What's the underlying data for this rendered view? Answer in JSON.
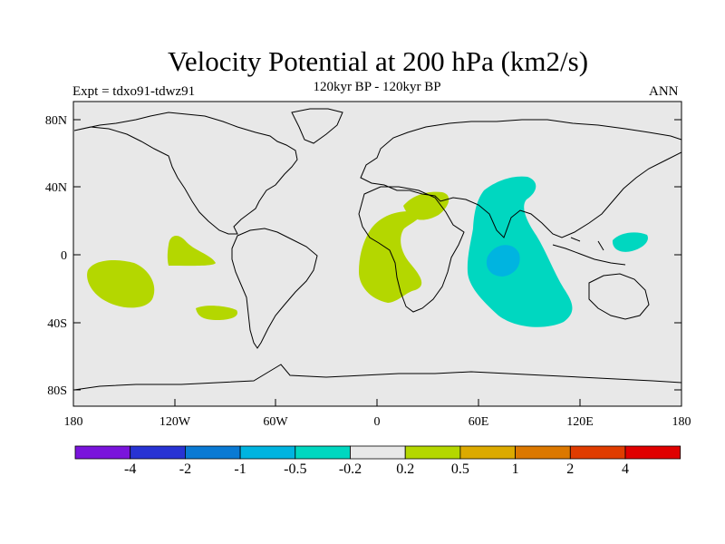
{
  "title": "Velocity Potential at 200 hPa (km2/s)",
  "subtitle": "120kyr BP - 120kyr BP",
  "experiment": "Expt = tdxo91-tdwz91",
  "season": "ANN",
  "map": {
    "projection": "cylindrical equidistant",
    "lon_range": [
      -180,
      180
    ],
    "lat_range": [
      -90,
      90
    ],
    "background_color": "#e8e8e8",
    "lat_ticks": [
      "80N",
      "40N",
      "0",
      "40S",
      "80S"
    ],
    "lon_ticks": [
      "180",
      "120W",
      "60W",
      "0",
      "60E",
      "120E",
      "180"
    ],
    "anomaly_regions": [
      {
        "name": "tropical-south-pacific-west",
        "category": "0.2 to 0.5",
        "color": "#b4d700"
      },
      {
        "name": "east-pacific",
        "category": "0.2 to 0.5",
        "color": "#b4d700"
      },
      {
        "name": "south-east-pacific",
        "category": "0.2 to 0.5",
        "color": "#b4d700"
      },
      {
        "name": "africa-atlantic",
        "category": "0.2 to 0.5",
        "color": "#b4d700"
      },
      {
        "name": "arabia",
        "category": "0.2 to 0.5",
        "color": "#b4d700"
      },
      {
        "name": "indian-ocean",
        "category": "-0.5 to -0.2",
        "color": "#00d7c0"
      },
      {
        "name": "indian-ocean-core",
        "category": "-1 to -0.5",
        "color": "#00b4e0"
      },
      {
        "name": "west-pacific",
        "category": "-0.5 to -0.2",
        "color": "#00d7c0"
      }
    ]
  },
  "colorbar": {
    "labels": [
      "-4",
      "-2",
      "-1",
      "-0.5",
      "-0.2",
      "0.2",
      "0.5",
      "1",
      "2",
      "4"
    ],
    "colors": [
      "#7a14dc",
      "#2833d4",
      "#0a7ad4",
      "#00b4e0",
      "#00d7c0",
      "#e8e8e8",
      "#b4d700",
      "#dcaa00",
      "#dc7800",
      "#e03c00",
      "#e00000"
    ]
  }
}
